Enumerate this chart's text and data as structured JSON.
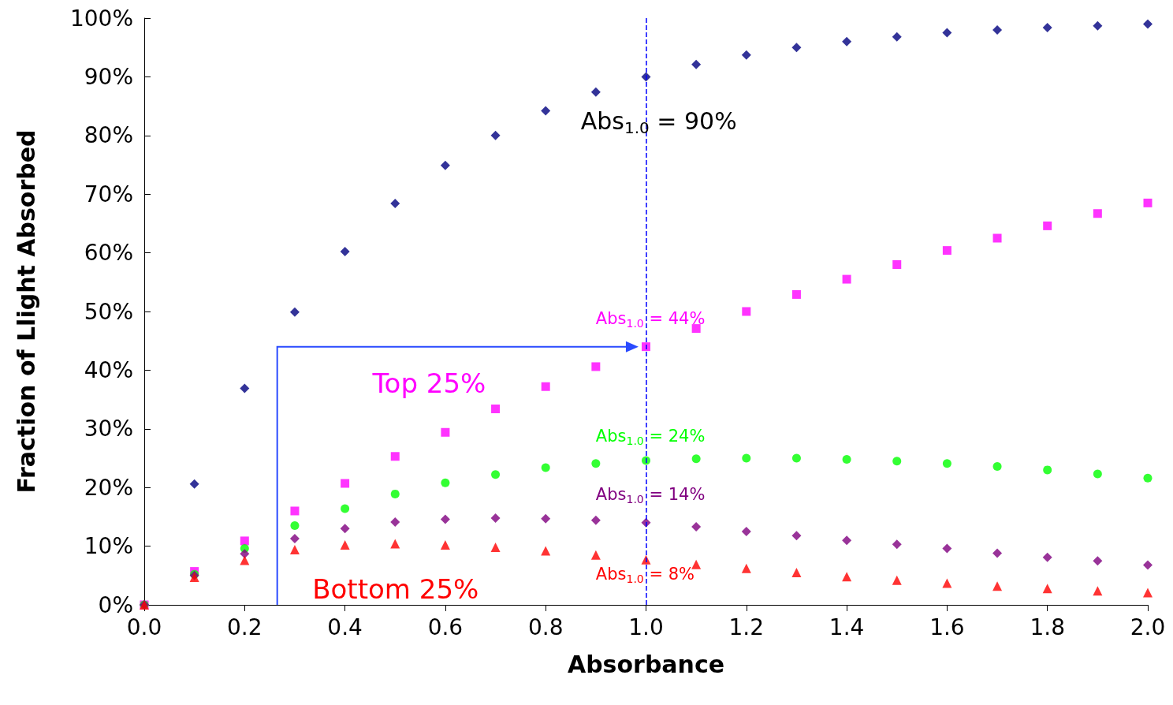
{
  "chart_data": {
    "type": "scatter",
    "xlabel": "Absorbance",
    "ylabel": "Fraction of Llight Absorbed",
    "x": [
      0,
      0.1,
      0.2,
      0.3,
      0.4,
      0.5,
      0.6,
      0.7,
      0.8,
      0.9,
      1.0,
      1.1,
      1.2,
      1.3,
      1.4,
      1.5,
      1.6,
      1.7,
      1.8,
      1.9,
      2.0
    ],
    "series": [
      {
        "color": "#000080",
        "marker": "diamond",
        "values": [
          0,
          20.6,
          36.9,
          49.9,
          60.2,
          68.4,
          74.9,
          80.0,
          84.2,
          87.4,
          90,
          92.1,
          93.7,
          95.0,
          96.0,
          96.8,
          97.5,
          98.0,
          98.4,
          98.7,
          99.0
        ]
      },
      {
        "color": "#ff00ff",
        "marker": "square",
        "values": [
          0,
          5.7,
          10.9,
          16,
          20.7,
          25.3,
          29.4,
          33.4,
          37.2,
          40.6,
          44,
          47.1,
          50,
          52.9,
          55.5,
          58,
          60.4,
          62.5,
          64.6,
          66.7,
          68.5
        ]
      },
      {
        "color": "#00ff00",
        "marker": "circle",
        "values": [
          0,
          5.2,
          9.6,
          13.5,
          16.4,
          18.9,
          20.8,
          22.2,
          23.4,
          24.1,
          24.6,
          24.9,
          25,
          25,
          24.8,
          24.5,
          24.1,
          23.6,
          23.0,
          22.3,
          21.6
        ]
      },
      {
        "color": "#800080",
        "marker": "diamond",
        "values": [
          0,
          5.0,
          8.7,
          11.3,
          13.0,
          14.1,
          14.6,
          14.8,
          14.7,
          14.4,
          14,
          13.3,
          12.5,
          11.8,
          11.0,
          10.3,
          9.6,
          8.8,
          8.1,
          7.5,
          6.8
        ]
      },
      {
        "color": "#ff0000",
        "marker": "triangle",
        "values": [
          0,
          4.7,
          7.6,
          9.4,
          10.2,
          10.4,
          10.2,
          9.8,
          9.2,
          8.5,
          7.7,
          6.9,
          6.2,
          5.5,
          4.8,
          4.2,
          3.7,
          3.2,
          2.8,
          2.4,
          2.1
        ]
      }
    ],
    "xlim": [
      0,
      2
    ],
    "xticks": [
      {
        "value": 0,
        "label": "0.0"
      },
      {
        "value": 0.2,
        "label": "0.2"
      },
      {
        "value": 0.4,
        "label": "0.4"
      },
      {
        "value": 0.6,
        "label": "0.6"
      },
      {
        "value": 0.8,
        "label": "0.8"
      },
      {
        "value": 1.0,
        "label": "1.0"
      },
      {
        "value": 1.2,
        "label": "1.2"
      },
      {
        "value": 1.4,
        "label": "1.4"
      },
      {
        "value": 1.6,
        "label": "1.6"
      },
      {
        "value": 1.8,
        "label": "1.8"
      },
      {
        "value": 2.0,
        "label": "2.0"
      }
    ],
    "ylim": [
      0,
      100
    ],
    "yticks": [
      {
        "value": 0,
        "label": "0%"
      },
      {
        "value": 10,
        "label": "10%"
      },
      {
        "value": 20,
        "label": "20%"
      },
      {
        "value": 30,
        "label": "30%"
      },
      {
        "value": 40,
        "label": "40%"
      },
      {
        "value": 50,
        "label": "50%"
      },
      {
        "value": 60,
        "label": "60%"
      },
      {
        "value": 70,
        "label": "70%"
      },
      {
        "value": 80,
        "label": "80%"
      },
      {
        "value": 90,
        "label": "90%"
      },
      {
        "value": 100,
        "label": "100%"
      }
    ],
    "grid": false,
    "ref_lines": [
      {
        "axis": "x",
        "value": 1.0,
        "color": "#0000ff",
        "line_style": "dashed"
      }
    ],
    "annotations": [
      "Abs$_{1.0}$ = 90%",
      "Abs$_{1.0}$ = 44%",
      "Abs$_{1.0}$ = 24%",
      "Abs$_{1.0}$ = 14%",
      "Abs$_{1.0}$ = 8%",
      "Top 25%",
      "Bottom 25%"
    ]
  }
}
